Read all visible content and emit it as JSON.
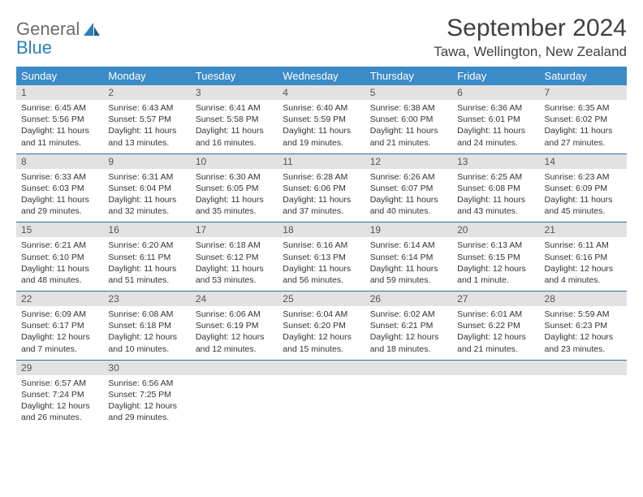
{
  "logo": {
    "line1": "General",
    "line2": "Blue"
  },
  "title": "September 2024",
  "location": "Tawa, Wellington, New Zealand",
  "colors": {
    "header_bg": "#3b8bc8",
    "header_text": "#ffffff",
    "daynum_bg": "#e2e2e2",
    "border": "#2a72a8",
    "logo_gray": "#6b6b6b",
    "logo_blue": "#2a7fba"
  },
  "day_headers": [
    "Sunday",
    "Monday",
    "Tuesday",
    "Wednesday",
    "Thursday",
    "Friday",
    "Saturday"
  ],
  "weeks": [
    [
      {
        "num": "1",
        "sunrise": "Sunrise: 6:45 AM",
        "sunset": "Sunset: 5:56 PM",
        "daylight1": "Daylight: 11 hours",
        "daylight2": "and 11 minutes."
      },
      {
        "num": "2",
        "sunrise": "Sunrise: 6:43 AM",
        "sunset": "Sunset: 5:57 PM",
        "daylight1": "Daylight: 11 hours",
        "daylight2": "and 13 minutes."
      },
      {
        "num": "3",
        "sunrise": "Sunrise: 6:41 AM",
        "sunset": "Sunset: 5:58 PM",
        "daylight1": "Daylight: 11 hours",
        "daylight2": "and 16 minutes."
      },
      {
        "num": "4",
        "sunrise": "Sunrise: 6:40 AM",
        "sunset": "Sunset: 5:59 PM",
        "daylight1": "Daylight: 11 hours",
        "daylight2": "and 19 minutes."
      },
      {
        "num": "5",
        "sunrise": "Sunrise: 6:38 AM",
        "sunset": "Sunset: 6:00 PM",
        "daylight1": "Daylight: 11 hours",
        "daylight2": "and 21 minutes."
      },
      {
        "num": "6",
        "sunrise": "Sunrise: 6:36 AM",
        "sunset": "Sunset: 6:01 PM",
        "daylight1": "Daylight: 11 hours",
        "daylight2": "and 24 minutes."
      },
      {
        "num": "7",
        "sunrise": "Sunrise: 6:35 AM",
        "sunset": "Sunset: 6:02 PM",
        "daylight1": "Daylight: 11 hours",
        "daylight2": "and 27 minutes."
      }
    ],
    [
      {
        "num": "8",
        "sunrise": "Sunrise: 6:33 AM",
        "sunset": "Sunset: 6:03 PM",
        "daylight1": "Daylight: 11 hours",
        "daylight2": "and 29 minutes."
      },
      {
        "num": "9",
        "sunrise": "Sunrise: 6:31 AM",
        "sunset": "Sunset: 6:04 PM",
        "daylight1": "Daylight: 11 hours",
        "daylight2": "and 32 minutes."
      },
      {
        "num": "10",
        "sunrise": "Sunrise: 6:30 AM",
        "sunset": "Sunset: 6:05 PM",
        "daylight1": "Daylight: 11 hours",
        "daylight2": "and 35 minutes."
      },
      {
        "num": "11",
        "sunrise": "Sunrise: 6:28 AM",
        "sunset": "Sunset: 6:06 PM",
        "daylight1": "Daylight: 11 hours",
        "daylight2": "and 37 minutes."
      },
      {
        "num": "12",
        "sunrise": "Sunrise: 6:26 AM",
        "sunset": "Sunset: 6:07 PM",
        "daylight1": "Daylight: 11 hours",
        "daylight2": "and 40 minutes."
      },
      {
        "num": "13",
        "sunrise": "Sunrise: 6:25 AM",
        "sunset": "Sunset: 6:08 PM",
        "daylight1": "Daylight: 11 hours",
        "daylight2": "and 43 minutes."
      },
      {
        "num": "14",
        "sunrise": "Sunrise: 6:23 AM",
        "sunset": "Sunset: 6:09 PM",
        "daylight1": "Daylight: 11 hours",
        "daylight2": "and 45 minutes."
      }
    ],
    [
      {
        "num": "15",
        "sunrise": "Sunrise: 6:21 AM",
        "sunset": "Sunset: 6:10 PM",
        "daylight1": "Daylight: 11 hours",
        "daylight2": "and 48 minutes."
      },
      {
        "num": "16",
        "sunrise": "Sunrise: 6:20 AM",
        "sunset": "Sunset: 6:11 PM",
        "daylight1": "Daylight: 11 hours",
        "daylight2": "and 51 minutes."
      },
      {
        "num": "17",
        "sunrise": "Sunrise: 6:18 AM",
        "sunset": "Sunset: 6:12 PM",
        "daylight1": "Daylight: 11 hours",
        "daylight2": "and 53 minutes."
      },
      {
        "num": "18",
        "sunrise": "Sunrise: 6:16 AM",
        "sunset": "Sunset: 6:13 PM",
        "daylight1": "Daylight: 11 hours",
        "daylight2": "and 56 minutes."
      },
      {
        "num": "19",
        "sunrise": "Sunrise: 6:14 AM",
        "sunset": "Sunset: 6:14 PM",
        "daylight1": "Daylight: 11 hours",
        "daylight2": "and 59 minutes."
      },
      {
        "num": "20",
        "sunrise": "Sunrise: 6:13 AM",
        "sunset": "Sunset: 6:15 PM",
        "daylight1": "Daylight: 12 hours",
        "daylight2": "and 1 minute."
      },
      {
        "num": "21",
        "sunrise": "Sunrise: 6:11 AM",
        "sunset": "Sunset: 6:16 PM",
        "daylight1": "Daylight: 12 hours",
        "daylight2": "and 4 minutes."
      }
    ],
    [
      {
        "num": "22",
        "sunrise": "Sunrise: 6:09 AM",
        "sunset": "Sunset: 6:17 PM",
        "daylight1": "Daylight: 12 hours",
        "daylight2": "and 7 minutes."
      },
      {
        "num": "23",
        "sunrise": "Sunrise: 6:08 AM",
        "sunset": "Sunset: 6:18 PM",
        "daylight1": "Daylight: 12 hours",
        "daylight2": "and 10 minutes."
      },
      {
        "num": "24",
        "sunrise": "Sunrise: 6:06 AM",
        "sunset": "Sunset: 6:19 PM",
        "daylight1": "Daylight: 12 hours",
        "daylight2": "and 12 minutes."
      },
      {
        "num": "25",
        "sunrise": "Sunrise: 6:04 AM",
        "sunset": "Sunset: 6:20 PM",
        "daylight1": "Daylight: 12 hours",
        "daylight2": "and 15 minutes."
      },
      {
        "num": "26",
        "sunrise": "Sunrise: 6:02 AM",
        "sunset": "Sunset: 6:21 PM",
        "daylight1": "Daylight: 12 hours",
        "daylight2": "and 18 minutes."
      },
      {
        "num": "27",
        "sunrise": "Sunrise: 6:01 AM",
        "sunset": "Sunset: 6:22 PM",
        "daylight1": "Daylight: 12 hours",
        "daylight2": "and 21 minutes."
      },
      {
        "num": "28",
        "sunrise": "Sunrise: 5:59 AM",
        "sunset": "Sunset: 6:23 PM",
        "daylight1": "Daylight: 12 hours",
        "daylight2": "and 23 minutes."
      }
    ],
    [
      {
        "num": "29",
        "sunrise": "Sunrise: 6:57 AM",
        "sunset": "Sunset: 7:24 PM",
        "daylight1": "Daylight: 12 hours",
        "daylight2": "and 26 minutes."
      },
      {
        "num": "30",
        "sunrise": "Sunrise: 6:56 AM",
        "sunset": "Sunset: 7:25 PM",
        "daylight1": "Daylight: 12 hours",
        "daylight2": "and 29 minutes."
      },
      {
        "empty": true
      },
      {
        "empty": true
      },
      {
        "empty": true
      },
      {
        "empty": true
      },
      {
        "empty": true
      }
    ]
  ]
}
